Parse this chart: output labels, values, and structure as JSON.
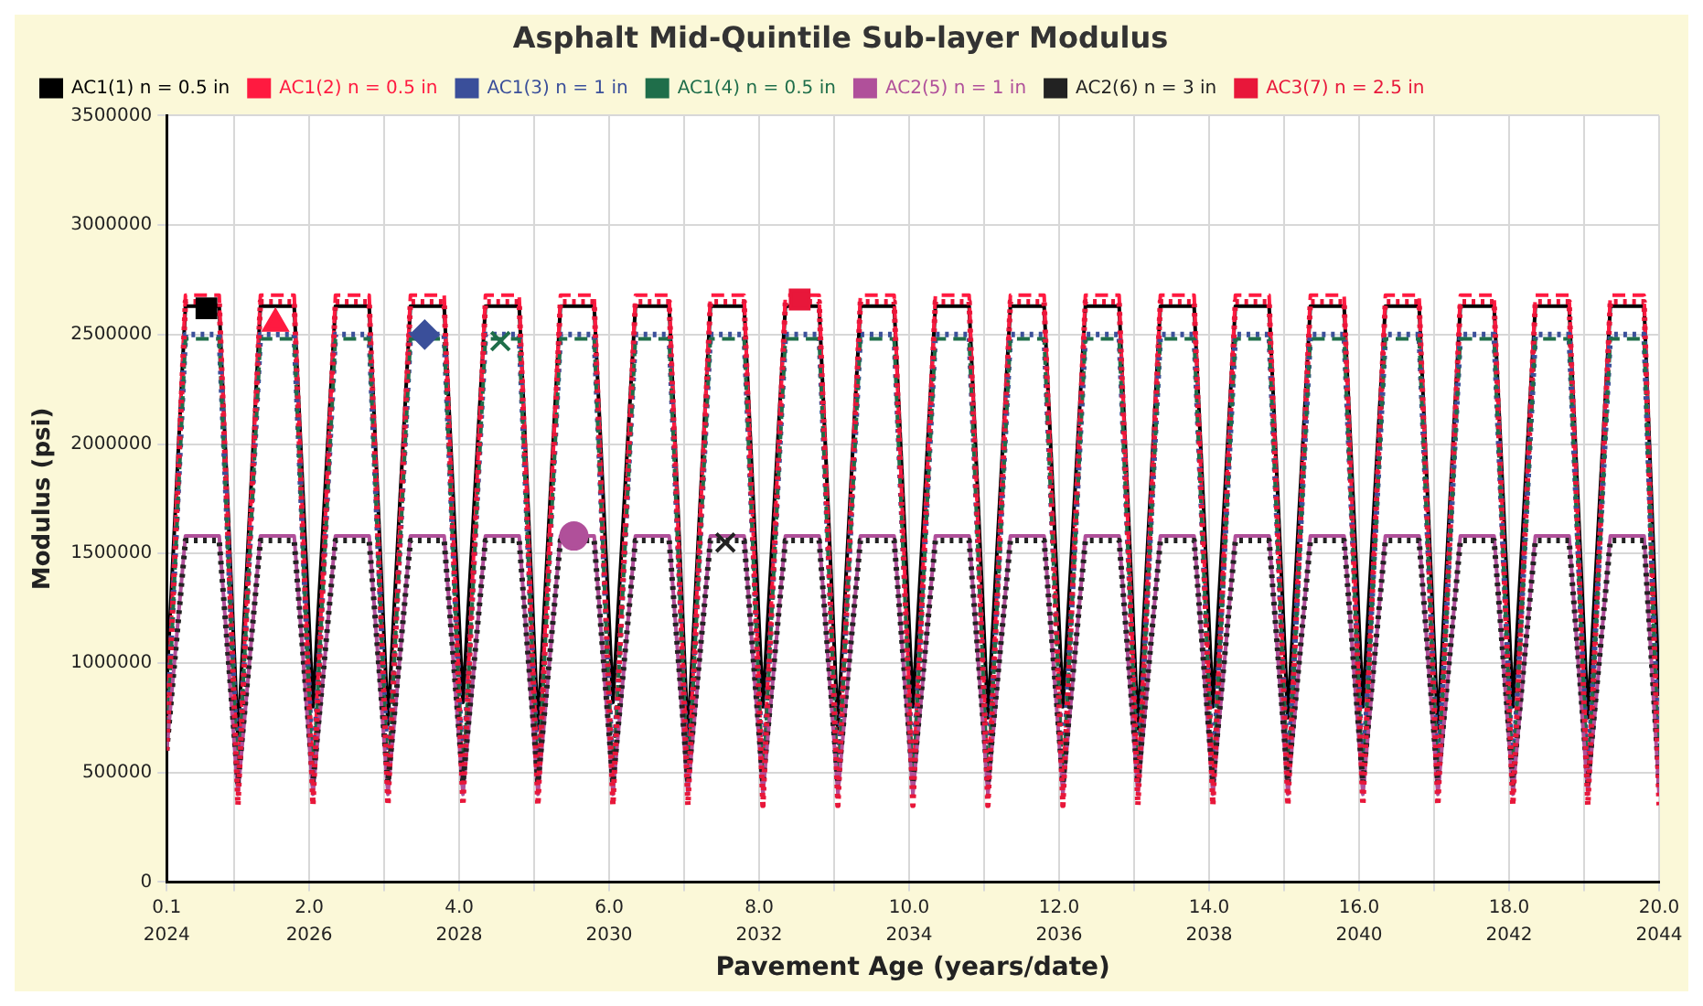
{
  "chart_data": {
    "type": "line",
    "title": "Asphalt Mid-Quintile Sub-layer Modulus",
    "xlabel": "Pavement Age (years/date)",
    "ylabel": "Modulus (psi)",
    "x": [
      0.1,
      0.35,
      0.8,
      1.05,
      1.35,
      1.8,
      2.05,
      2.35,
      2.8,
      3.05,
      3.35,
      3.8,
      4.05,
      4.35,
      4.8,
      5.05,
      5.35,
      5.8,
      6.05,
      6.35,
      6.8,
      7.05,
      7.35,
      7.8,
      8.05,
      8.35,
      8.8,
      9.05,
      9.35,
      9.8,
      10.05,
      10.35,
      10.8,
      11.05,
      11.35,
      11.8,
      12.05,
      12.35,
      12.8,
      13.05,
      13.35,
      13.8,
      14.05,
      14.35,
      14.8,
      15.05,
      15.35,
      15.8,
      16.05,
      16.35,
      16.8,
      17.05,
      17.35,
      17.8,
      18.05,
      18.35,
      18.8,
      19.05,
      19.35,
      19.8,
      20.0
    ],
    "xlim": [
      0.1,
      20.0
    ],
    "xticks": [
      0.1,
      {
        "value": 1,
        "label": null
      },
      {
        "value": 2,
        "label": "2.0"
      },
      {
        "value": 3,
        "label": null
      },
      {
        "value": 4,
        "label": "4.0"
      },
      {
        "value": 5,
        "label": null
      },
      {
        "value": 6,
        "label": "6.0"
      },
      {
        "value": 7,
        "label": null
      },
      {
        "value": 8,
        "label": "8.0"
      },
      {
        "value": 9,
        "label": null
      },
      {
        "value": 10,
        "label": "10.0"
      },
      {
        "value": 11,
        "label": null
      },
      {
        "value": 12,
        "label": "12.0"
      },
      {
        "value": 13,
        "label": null
      },
      {
        "value": 14,
        "label": "14.0"
      },
      {
        "value": 15,
        "label": null
      },
      {
        "value": 16,
        "label": "16.0"
      },
      {
        "value": 17,
        "label": null
      },
      {
        "value": 18,
        "label": "18.0"
      },
      {
        "value": 19,
        "label": null
      },
      {
        "value": 20,
        "label": "20.0"
      }
    ],
    "x2lim": [
      2024.1,
      2044
    ],
    "x2ticks": [
      {
        "value": 2024.1,
        "label": "2024"
      },
      2026,
      2028,
      2030,
      2032,
      2034,
      2036,
      2038,
      2040,
      2042,
      2044
    ],
    "ylim": [
      0,
      3500000
    ],
    "yticks": [
      0,
      500000,
      1000000,
      1500000,
      2000000,
      2500000,
      3000000,
      3500000
    ],
    "grid": true,
    "legend": "top",
    "series": [
      {
        "name": "AC1(1) n = 0.5 in",
        "color": "#000000",
        "line_style": "solid",
        "values": [
          900000,
          2630000,
          2630000,
          650000,
          2630000,
          2630000,
          800000,
          2630000,
          2630000,
          720000,
          2630000,
          2630000,
          820000,
          2630000,
          2630000,
          700000,
          2630000,
          2630000,
          820000,
          2630000,
          2630000,
          650000,
          2630000,
          2630000,
          800000,
          2630000,
          2630000,
          700000,
          2630000,
          2630000,
          800000,
          2630000,
          2630000,
          750000,
          2630000,
          2630000,
          800000,
          2630000,
          2630000,
          700000,
          2630000,
          2630000,
          800000,
          2630000,
          2630000,
          750000,
          2630000,
          2630000,
          800000,
          2630000,
          2630000,
          700000,
          2630000,
          2630000,
          800000,
          2630000,
          2630000,
          750000,
          2630000,
          2630000,
          850000
        ]
      },
      {
        "name": "AC1(2) n = 0.5 in",
        "color": "#ff1a40",
        "line_style": "dashed",
        "values": [
          700000,
          2680000,
          2680000,
          420000,
          2680000,
          2680000,
          420000,
          2680000,
          2680000,
          420000,
          2680000,
          2680000,
          420000,
          2680000,
          2680000,
          420000,
          2680000,
          2680000,
          420000,
          2680000,
          2680000,
          420000,
          2680000,
          2680000,
          420000,
          2680000,
          2680000,
          420000,
          2680000,
          2680000,
          420000,
          2680000,
          2680000,
          420000,
          2680000,
          2680000,
          420000,
          2680000,
          2680000,
          420000,
          2680000,
          2680000,
          420000,
          2680000,
          2680000,
          420000,
          2680000,
          2680000,
          420000,
          2680000,
          2680000,
          420000,
          2680000,
          2680000,
          420000,
          2680000,
          2680000,
          420000,
          2680000,
          2680000,
          420000
        ]
      },
      {
        "name": "AC1(3) n = 1 in",
        "color": "#3a4f9a",
        "line_style": "dotted",
        "values": [
          650000,
          2500000,
          2500000,
          450000,
          2500000,
          2500000,
          450000,
          2500000,
          2500000,
          450000,
          2500000,
          2500000,
          450000,
          2500000,
          2500000,
          450000,
          2500000,
          2500000,
          450000,
          2500000,
          2500000,
          450000,
          2500000,
          2500000,
          450000,
          2500000,
          2500000,
          450000,
          2500000,
          2500000,
          450000,
          2500000,
          2500000,
          450000,
          2500000,
          2500000,
          450000,
          2500000,
          2500000,
          450000,
          2500000,
          2500000,
          450000,
          2500000,
          2500000,
          450000,
          2500000,
          2500000,
          450000,
          2500000,
          2500000,
          450000,
          2500000,
          2500000,
          450000,
          2500000,
          2500000,
          450000,
          2500000,
          2500000,
          450000
        ]
      },
      {
        "name": "AC1(4) n = 0.5 in",
        "color": "#1f6e4a",
        "line_style": "dashed",
        "values": [
          600000,
          2480000,
          2480000,
          420000,
          2480000,
          2480000,
          420000,
          2480000,
          2480000,
          420000,
          2480000,
          2480000,
          420000,
          2480000,
          2480000,
          420000,
          2480000,
          2480000,
          420000,
          2480000,
          2480000,
          420000,
          2480000,
          2480000,
          420000,
          2480000,
          2480000,
          420000,
          2480000,
          2480000,
          420000,
          2480000,
          2480000,
          420000,
          2480000,
          2480000,
          420000,
          2480000,
          2480000,
          420000,
          2480000,
          2480000,
          420000,
          2480000,
          2480000,
          420000,
          2480000,
          2480000,
          420000,
          2480000,
          2480000,
          420000,
          2480000,
          2480000,
          420000,
          2480000,
          2480000,
          420000,
          2480000,
          2480000,
          420000
        ]
      },
      {
        "name": "AC2(5) n = 1 in",
        "color": "#b0509a",
        "line_style": "solid",
        "values": [
          600000,
          1580000,
          1580000,
          400000,
          1580000,
          1580000,
          400000,
          1580000,
          1580000,
          400000,
          1580000,
          1580000,
          400000,
          1580000,
          1580000,
          400000,
          1580000,
          1580000,
          400000,
          1580000,
          1580000,
          400000,
          1580000,
          1580000,
          400000,
          1580000,
          1580000,
          400000,
          1580000,
          1580000,
          400000,
          1580000,
          1580000,
          400000,
          1580000,
          1580000,
          400000,
          1580000,
          1580000,
          400000,
          1580000,
          1580000,
          400000,
          1580000,
          1580000,
          400000,
          1580000,
          1580000,
          400000,
          1580000,
          1580000,
          400000,
          1580000,
          1580000,
          400000,
          1580000,
          1580000,
          400000,
          1580000,
          1580000,
          400000
        ]
      },
      {
        "name": "AC2(6) n = 3 in",
        "color": "#222222",
        "line_style": "dotted",
        "values": [
          600000,
          1560000,
          1560000,
          450000,
          1560000,
          1560000,
          450000,
          1560000,
          1560000,
          450000,
          1560000,
          1560000,
          450000,
          1560000,
          1560000,
          450000,
          1560000,
          1560000,
          450000,
          1560000,
          1560000,
          450000,
          1560000,
          1560000,
          450000,
          1560000,
          1560000,
          450000,
          1560000,
          1560000,
          450000,
          1560000,
          1560000,
          450000,
          1560000,
          1560000,
          450000,
          1560000,
          1560000,
          450000,
          1560000,
          1560000,
          450000,
          1560000,
          1560000,
          450000,
          1560000,
          1560000,
          450000,
          1560000,
          1560000,
          450000,
          1560000,
          1560000,
          450000,
          1560000,
          1560000,
          450000,
          1560000,
          1560000,
          450000
        ]
      },
      {
        "name": "AC3(7) n = 2.5 in",
        "color": "#e8173a",
        "line_style": "dotted",
        "values": [
          600000,
          2650000,
          2650000,
          350000,
          2650000,
          2650000,
          350000,
          2650000,
          2650000,
          350000,
          2650000,
          2650000,
          350000,
          2650000,
          2650000,
          350000,
          2650000,
          2650000,
          350000,
          2650000,
          2650000,
          350000,
          2650000,
          2650000,
          350000,
          2650000,
          2650000,
          350000,
          2650000,
          2650000,
          350000,
          2650000,
          2650000,
          350000,
          2650000,
          2650000,
          350000,
          2650000,
          2650000,
          350000,
          2650000,
          2650000,
          350000,
          2650000,
          2650000,
          350000,
          2650000,
          2650000,
          350000,
          2650000,
          2650000,
          350000,
          2650000,
          2650000,
          350000,
          2650000,
          2650000,
          350000,
          2650000,
          2650000,
          350000
        ]
      },
      {
        "type": "scatter",
        "color": "#000000",
        "marker": "square",
        "x": [
          0.63
        ],
        "values": [
          2620000
        ]
      },
      {
        "type": "scatter",
        "color": "#ff1a40",
        "marker": "triangle",
        "x": [
          1.55
        ],
        "values": [
          2550000
        ]
      },
      {
        "type": "scatter",
        "color": "#3a4f9a",
        "marker": "diamond",
        "x": [
          3.54
        ],
        "values": [
          2500000
        ]
      },
      {
        "type": "scatter",
        "color": "#1f6e4a",
        "marker": "cross",
        "x": [
          4.55
        ],
        "values": [
          2470000
        ]
      },
      {
        "type": "scatter",
        "color": "#b0509a",
        "marker": "circle",
        "x": [
          5.53
        ],
        "values": [
          1580000
        ]
      },
      {
        "type": "scatter",
        "color": "#222222",
        "marker": "cross",
        "x": [
          7.55
        ],
        "values": [
          1550000
        ]
      },
      {
        "type": "scatter",
        "color": "#e8173a",
        "marker": "square",
        "x": [
          8.54
        ],
        "values": [
          2660000
        ]
      }
    ]
  }
}
